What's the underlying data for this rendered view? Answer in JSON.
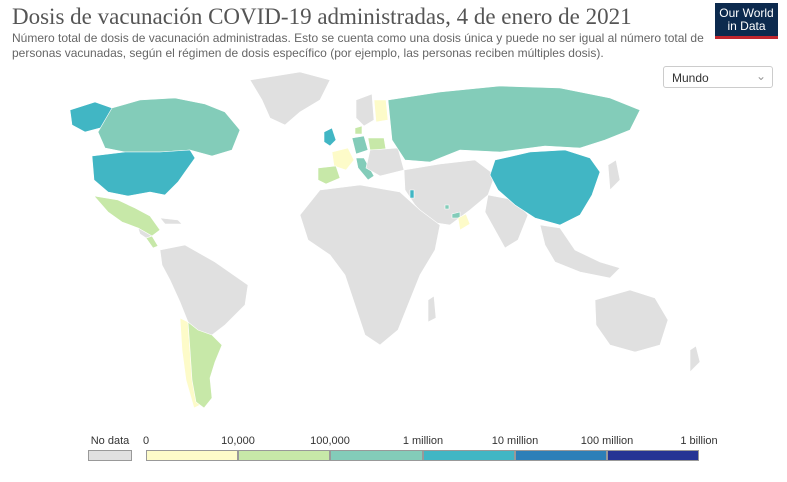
{
  "header": {
    "title": "Dosis de vacunación COVID-19 administradas, 4 de enero de 2021",
    "subtitle": "Número total de dosis de vacunación administradas. Esto se cuenta como una dosis única y puede no ser igual al número total de personas vacunadas, según el régimen de dosis específico (por ejemplo, las personas reciben múltiples dosis).",
    "logo_line1": "Our World",
    "logo_line2": "in Data"
  },
  "controls": {
    "region_select": "Mundo"
  },
  "legend": {
    "no_data_label": "No data",
    "no_data_color": "#e0e0e0",
    "ticks": [
      "0",
      "10,000",
      "100,000",
      "1 million",
      "10 million",
      "100 million",
      "1 billion"
    ],
    "bins": [
      {
        "color": "#fdfbc9"
      },
      {
        "color": "#c7e8a8"
      },
      {
        "color": "#83ccb9"
      },
      {
        "color": "#41b6c4"
      },
      {
        "color": "#2c7fb8"
      },
      {
        "color": "#253494"
      }
    ]
  },
  "map_data": {
    "metric": "Dosis de vacunación COVID-19 administradas",
    "date": "4 de enero de 2021",
    "countries": [
      {
        "name": "United States",
        "bin": "1 million – 10 million",
        "color": "#41b6c4"
      },
      {
        "name": "China",
        "bin": "1 million – 10 million",
        "color": "#41b6c4"
      },
      {
        "name": "Israel",
        "bin": "1 million – 10 million",
        "color": "#41b6c4"
      },
      {
        "name": "United Kingdom",
        "bin": "1 million – 10 million",
        "color": "#41b6c4"
      },
      {
        "name": "Canada",
        "bin": "100,000 – 1 million",
        "color": "#83ccb9"
      },
      {
        "name": "Russia",
        "bin": "100,000 – 1 million",
        "color": "#83ccb9"
      },
      {
        "name": "Germany",
        "bin": "100,000 – 1 million",
        "color": "#83ccb9"
      },
      {
        "name": "Italy",
        "bin": "100,000 – 1 million",
        "color": "#83ccb9"
      },
      {
        "name": "Bahrain",
        "bin": "100,000 – 1 million",
        "color": "#83ccb9"
      },
      {
        "name": "United Arab Emirates",
        "bin": "100,000 – 1 million",
        "color": "#83ccb9"
      },
      {
        "name": "Mexico",
        "bin": "10,000 – 100,000",
        "color": "#c7e8a8"
      },
      {
        "name": "Spain",
        "bin": "10,000 – 100,000",
        "color": "#c7e8a8"
      },
      {
        "name": "Argentina",
        "bin": "10,000 – 100,000",
        "color": "#c7e8a8"
      },
      {
        "name": "Poland",
        "bin": "10,000 – 100,000",
        "color": "#c7e8a8"
      },
      {
        "name": "Denmark",
        "bin": "10,000 – 100,000",
        "color": "#c7e8a8"
      },
      {
        "name": "Costa Rica",
        "bin": "10,000 – 100,000",
        "color": "#c7e8a8"
      },
      {
        "name": "Chile",
        "bin": "0 – 10,000",
        "color": "#fdfbc9"
      },
      {
        "name": "France",
        "bin": "0 – 10,000",
        "color": "#fdfbc9"
      },
      {
        "name": "Finland",
        "bin": "0 – 10,000",
        "color": "#fdfbc9"
      },
      {
        "name": "Oman",
        "bin": "0 – 10,000",
        "color": "#fdfbc9"
      },
      {
        "name": "Kuwait",
        "bin": "0 – 10,000",
        "color": "#fdfbc9"
      }
    ]
  }
}
